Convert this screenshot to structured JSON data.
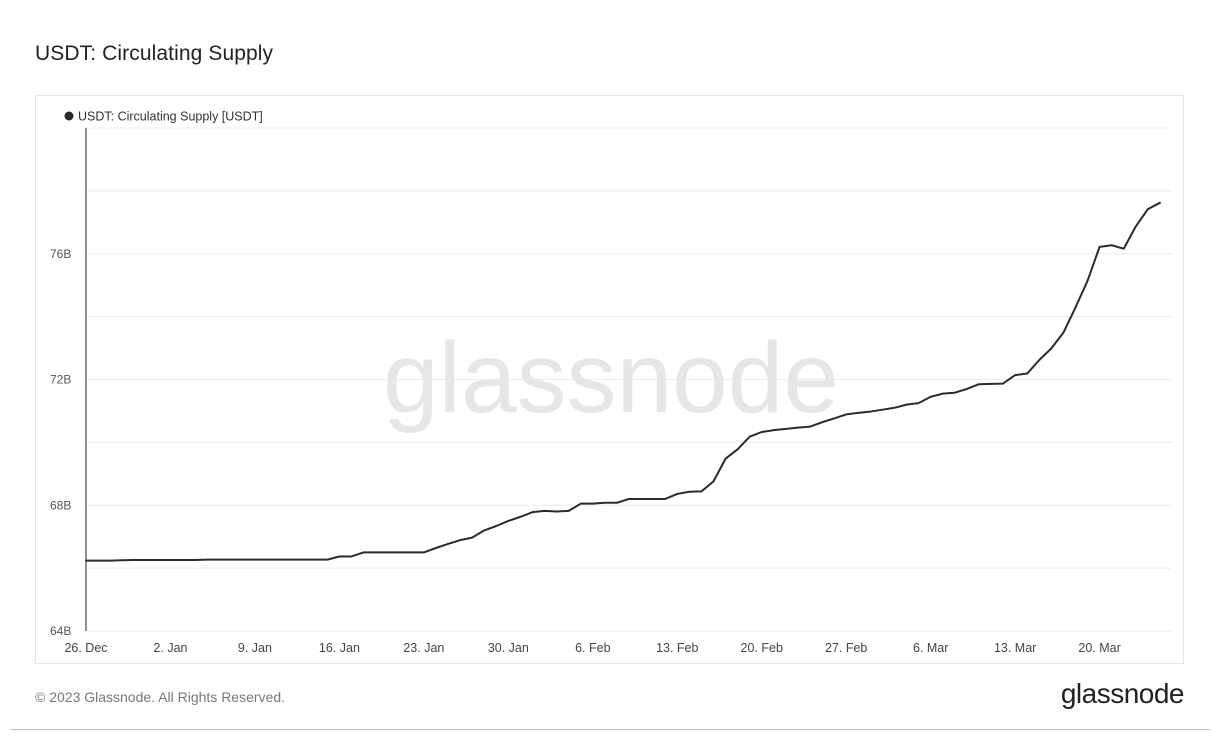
{
  "header": {
    "title": "USDT: Circulating Supply"
  },
  "watermark": "glassnode",
  "footer": {
    "copyright": "© 2023 Glassnode. All Rights Reserved.",
    "logo": "glassnode"
  },
  "colors": {
    "line": "#2b2b2b",
    "grid": "#ececec",
    "axis": "#222222",
    "watermark": "#e6e6e6"
  },
  "chart_data": {
    "type": "line",
    "title": "",
    "xlabel": "",
    "ylabel": "",
    "legend": {
      "placement": "top-left",
      "entries": [
        {
          "name": "USDT: Circulating Supply [USDT]",
          "color": "#2b2b2b"
        }
      ]
    },
    "grid": true,
    "ylim": [
      64,
      80
    ],
    "y_ticks": [
      {
        "value": 64,
        "label": "64B"
      },
      {
        "value": 68,
        "label": "68B"
      },
      {
        "value": 72,
        "label": "72B"
      },
      {
        "value": 76,
        "label": "76B"
      }
    ],
    "x_range": [
      "2022-12-26",
      "2023-03-26"
    ],
    "x_ticks": [
      {
        "date": "2022-12-26",
        "label": "26. Dec"
      },
      {
        "date": "2023-01-02",
        "label": "2. Jan"
      },
      {
        "date": "2023-01-09",
        "label": "9. Jan"
      },
      {
        "date": "2023-01-16",
        "label": "16. Jan"
      },
      {
        "date": "2023-01-23",
        "label": "23. Jan"
      },
      {
        "date": "2023-01-30",
        "label": "30. Jan"
      },
      {
        "date": "2023-02-06",
        "label": "6. Feb"
      },
      {
        "date": "2023-02-13",
        "label": "13. Feb"
      },
      {
        "date": "2023-02-20",
        "label": "20. Feb"
      },
      {
        "date": "2023-02-27",
        "label": "27. Feb"
      },
      {
        "date": "2023-03-06",
        "label": "6. Mar"
      },
      {
        "date": "2023-03-13",
        "label": "13. Mar"
      },
      {
        "date": "2023-03-20",
        "label": "20. Mar"
      }
    ],
    "series": [
      {
        "name": "USDT: Circulating Supply [USDT]",
        "unit": "B",
        "points": [
          [
            "2022-12-26",
            66.24
          ],
          [
            "2022-12-27",
            66.24
          ],
          [
            "2022-12-28",
            66.24
          ],
          [
            "2022-12-29",
            66.25
          ],
          [
            "2022-12-30",
            66.26
          ],
          [
            "2022-12-31",
            66.26
          ],
          [
            "2023-01-01",
            66.26
          ],
          [
            "2023-01-02",
            66.26
          ],
          [
            "2023-01-03",
            66.26
          ],
          [
            "2023-01-04",
            66.26
          ],
          [
            "2023-01-05",
            66.27
          ],
          [
            "2023-01-06",
            66.27
          ],
          [
            "2023-01-07",
            66.27
          ],
          [
            "2023-01-08",
            66.27
          ],
          [
            "2023-01-09",
            66.27
          ],
          [
            "2023-01-10",
            66.27
          ],
          [
            "2023-01-11",
            66.27
          ],
          [
            "2023-01-12",
            66.27
          ],
          [
            "2023-01-13",
            66.27
          ],
          [
            "2023-01-14",
            66.27
          ],
          [
            "2023-01-15",
            66.27
          ],
          [
            "2023-01-16",
            66.37
          ],
          [
            "2023-01-17",
            66.37
          ],
          [
            "2023-01-18",
            66.5
          ],
          [
            "2023-01-19",
            66.5
          ],
          [
            "2023-01-20",
            66.5
          ],
          [
            "2023-01-21",
            66.5
          ],
          [
            "2023-01-22",
            66.5
          ],
          [
            "2023-01-23",
            66.5
          ],
          [
            "2023-01-24",
            66.64
          ],
          [
            "2023-01-25",
            66.77
          ],
          [
            "2023-01-26",
            66.89
          ],
          [
            "2023-01-27",
            66.97
          ],
          [
            "2023-01-28",
            67.2
          ],
          [
            "2023-01-29",
            67.34
          ],
          [
            "2023-01-30",
            67.5
          ],
          [
            "2023-01-31",
            67.63
          ],
          [
            "2023-02-01",
            67.78
          ],
          [
            "2023-02-02",
            67.82
          ],
          [
            "2023-02-03",
            67.8
          ],
          [
            "2023-02-04",
            67.82
          ],
          [
            "2023-02-05",
            68.05
          ],
          [
            "2023-02-06",
            68.05
          ],
          [
            "2023-02-07",
            68.08
          ],
          [
            "2023-02-08",
            68.08
          ],
          [
            "2023-02-09",
            68.2
          ],
          [
            "2023-02-10",
            68.2
          ],
          [
            "2023-02-11",
            68.2
          ],
          [
            "2023-02-12",
            68.2
          ],
          [
            "2023-02-13",
            68.36
          ],
          [
            "2023-02-14",
            68.43
          ],
          [
            "2023-02-15",
            68.44
          ],
          [
            "2023-02-16",
            68.76
          ],
          [
            "2023-02-17",
            69.48
          ],
          [
            "2023-02-18",
            69.78
          ],
          [
            "2023-02-19",
            70.18
          ],
          [
            "2023-02-20",
            70.33
          ],
          [
            "2023-02-21",
            70.39
          ],
          [
            "2023-02-22",
            70.43
          ],
          [
            "2023-02-23",
            70.47
          ],
          [
            "2023-02-24",
            70.5
          ],
          [
            "2023-02-25",
            70.64
          ],
          [
            "2023-02-26",
            70.76
          ],
          [
            "2023-02-27",
            70.89
          ],
          [
            "2023-02-28",
            70.94
          ],
          [
            "2023-03-01",
            70.98
          ],
          [
            "2023-03-02",
            71.04
          ],
          [
            "2023-03-03",
            71.1
          ],
          [
            "2023-03-04",
            71.2
          ],
          [
            "2023-03-05",
            71.25
          ],
          [
            "2023-03-06",
            71.45
          ],
          [
            "2023-03-07",
            71.55
          ],
          [
            "2023-03-08",
            71.58
          ],
          [
            "2023-03-09",
            71.7
          ],
          [
            "2023-03-10",
            71.85
          ],
          [
            "2023-03-11",
            71.86
          ],
          [
            "2023-03-12",
            71.87
          ],
          [
            "2023-03-13",
            72.14
          ],
          [
            "2023-03-14",
            72.19
          ],
          [
            "2023-03-15",
            72.62
          ],
          [
            "2023-03-16",
            72.99
          ],
          [
            "2023-03-17",
            73.49
          ],
          [
            "2023-03-18",
            74.29
          ],
          [
            "2023-03-19",
            75.14
          ],
          [
            "2023-03-20",
            76.22
          ],
          [
            "2023-03-21",
            76.27
          ],
          [
            "2023-03-22",
            76.16
          ],
          [
            "2023-03-23",
            76.87
          ],
          [
            "2023-03-24",
            77.42
          ],
          [
            "2023-03-25",
            77.62
          ]
        ]
      }
    ]
  }
}
